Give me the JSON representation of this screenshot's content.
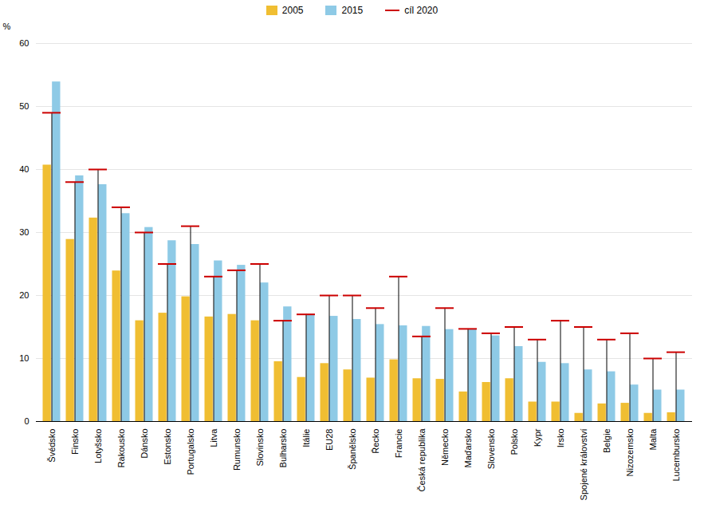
{
  "chart_data": {
    "type": "bar",
    "categories": [
      "Švédsko",
      "Finsko",
      "Lotyšsko",
      "Rakousko",
      "Dánsko",
      "Estonsko",
      "Portugalsko",
      "Litva",
      "Rumunsko",
      "Slovinsko",
      "Bulharsko",
      "Itálie",
      "EU28",
      "Španělsko",
      "Řecko",
      "Francie",
      "Česká republika",
      "Německo",
      "Maďarsko",
      "Slovensko",
      "Polsko",
      "Kypr",
      "Irsko",
      "Spojené království",
      "Belgie",
      "Nizozemsko",
      "Malta",
      "Lucembursko"
    ],
    "series": [
      {
        "name": "2005",
        "color": "#f0be32",
        "values": [
          40.7,
          28.9,
          32.3,
          23.9,
          16.0,
          17.2,
          19.8,
          16.6,
          17.0,
          16.0,
          9.5,
          7.0,
          9.2,
          8.2,
          6.9,
          9.8,
          6.8,
          6.7,
          4.7,
          6.2,
          6.8,
          3.1,
          3.1,
          1.3,
          2.8,
          2.9,
          1.3,
          1.4
        ]
      },
      {
        "name": "2015",
        "color": "#8ecae6",
        "values": [
          53.9,
          39.0,
          37.6,
          33.0,
          30.8,
          28.7,
          28.1,
          25.5,
          24.8,
          22.0,
          18.2,
          17.0,
          16.7,
          16.2,
          15.4,
          15.2,
          15.1,
          14.6,
          14.6,
          13.6,
          11.9,
          9.4,
          9.2,
          8.2,
          7.9,
          5.8,
          5.0,
          5.0
        ]
      },
      {
        "name": "cíl 2020",
        "type": "tick",
        "color": "#cc0000",
        "values": [
          49.0,
          38.0,
          40.0,
          34.0,
          30.0,
          25.0,
          31.0,
          23.0,
          24.0,
          25.0,
          16.0,
          17.0,
          20.0,
          20.0,
          18.0,
          23.0,
          13.5,
          18.0,
          14.7,
          14.0,
          15.0,
          13.0,
          16.0,
          15.0,
          13.0,
          14.0,
          10.0,
          11.0
        ]
      }
    ],
    "ylabel": "%",
    "ylim": [
      0,
      60
    ],
    "yticks": [
      0,
      10,
      20,
      30,
      40,
      50,
      60
    ],
    "grid": true,
    "legend": "top"
  }
}
